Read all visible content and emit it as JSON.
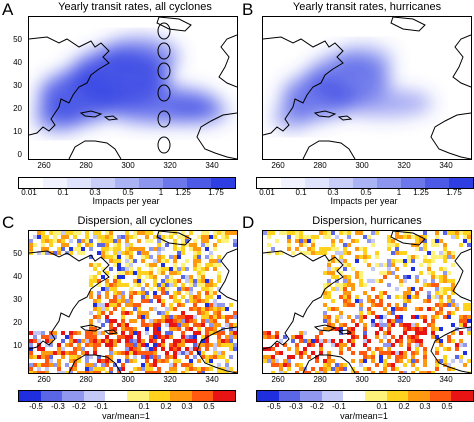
{
  "panels": {
    "A": {
      "letter": "A",
      "title": "Yearly transit rates, all cyclones"
    },
    "B": {
      "letter": "B",
      "title": "Yearly transit rates, hurricanes"
    },
    "C": {
      "letter": "C",
      "title": "Dispersion, all cyclones"
    },
    "D": {
      "letter": "D",
      "title": "Dispersion, hurricanes"
    }
  },
  "axes": {
    "y_ticks": [
      "0",
      "10",
      "20",
      "30",
      "40",
      "50"
    ],
    "x_ticks": [
      "260",
      "280",
      "300",
      "320",
      "340"
    ]
  },
  "colorbars": {
    "transit": {
      "label": "Impacts per year",
      "ticks": [
        "0.01",
        "0.1",
        "0.3",
        "0.5",
        "1",
        "1.25",
        "1.75"
      ],
      "colors": [
        "#ffffff",
        "#f0f2fd",
        "#dfe3fb",
        "#c8cef8",
        "#aab3f4",
        "#8c96ef",
        "#6c78ea",
        "#4d5ae6",
        "#2f3ee3"
      ]
    },
    "dispersion": {
      "label": "var/mean=1",
      "ticks": [
        "-0.5",
        "-0.3",
        "-0.2",
        "-0.1",
        "0.1",
        "0.2",
        "0.3",
        "0.5"
      ],
      "colors": [
        "#1f2fe0",
        "#5a66e6",
        "#8f97ee",
        "#c3c8f6",
        "#ffffff",
        "#fff27a",
        "#ffd21e",
        "#ff9a10",
        "#ff5a10",
        "#e81414"
      ]
    }
  },
  "theme": {
    "transit_color": "#3a48e4",
    "dispersion_high": "#e81414",
    "dispersion_low": "#1f2fe0"
  }
}
